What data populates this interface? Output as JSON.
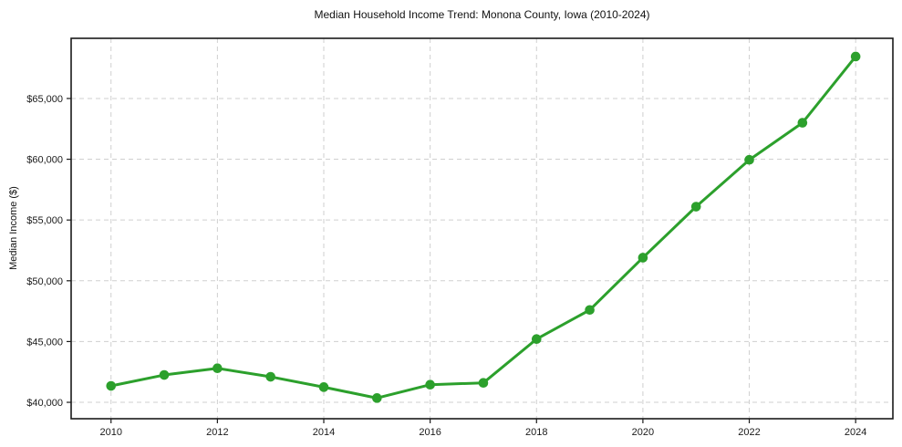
{
  "chart_data": {
    "type": "line",
    "title": "Median Household Income Trend: Monona County, Iowa (2010-2024)",
    "xlabel": "",
    "ylabel": "Median Income ($)",
    "x": [
      2010,
      2011,
      2012,
      2013,
      2014,
      2015,
      2016,
      2017,
      2018,
      2019,
      2020,
      2021,
      2022,
      2023,
      2024
    ],
    "series": [
      {
        "name": "Median Household Income",
        "values": [
          41350,
          42250,
          42800,
          42100,
          41250,
          40350,
          41450,
          41600,
          45200,
          47600,
          51900,
          56100,
          59950,
          63000,
          68450
        ]
      }
    ],
    "xticks": [
      2010,
      2012,
      2014,
      2016,
      2018,
      2020,
      2022,
      2024
    ],
    "yticks": [
      40000,
      45000,
      50000,
      55000,
      60000,
      65000
    ],
    "ytick_labels": [
      "$40,000",
      "$45,000",
      "$50,000",
      "$55,000",
      "$60,000",
      "$65,000"
    ],
    "xlim": [
      2009.25,
      2024.7
    ],
    "ylim": [
      38650,
      69950
    ],
    "grid": true,
    "grid_style": "dashed",
    "legend": false,
    "colors": {
      "line": "#2ca02c",
      "marker": "#2ca02c",
      "grid": "#cfcfcf",
      "spine": "#1a1a1a",
      "background": "#ffffff",
      "text": "#1a1a1a"
    },
    "marker": "circle",
    "line_width": 3,
    "marker_radius": 5.3
  }
}
